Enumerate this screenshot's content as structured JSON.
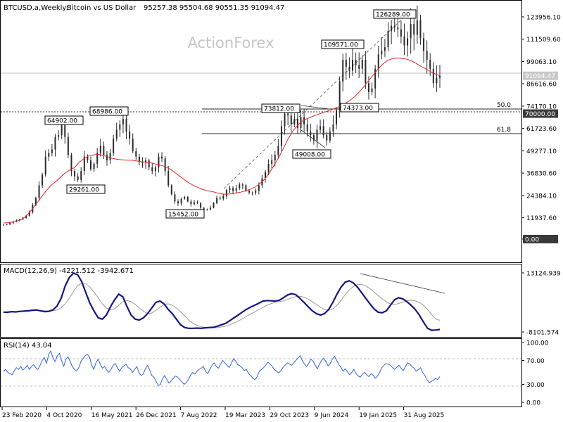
{
  "header": {
    "symbol": "BTCUSD.a,Weekly:",
    "description": "Bitcoin vs US Dollar",
    "ohlc": "95257.38 95504.68 90551.35 91094.47"
  },
  "watermark": "ActionForex",
  "colors": {
    "background": "#ffffff",
    "candles": "#2a2a2a",
    "ma": "#e32626",
    "macd_line": "#151580",
    "macd_signal": "#9a9a9a",
    "rsi": "#2f63e6",
    "level_fill": "#3a3a3a",
    "grid": "#bfbfbf"
  },
  "chart_data": [
    {
      "type": "line",
      "panel": "price",
      "title": "BTCUSD.a,Weekly: Bitcoin vs US Dollar",
      "x_ticks": [
        "23 Feb 2020",
        "4 Oct 2020",
        "16 May 2021",
        "26 Dec 2021",
        "7 Aug 2022",
        "19 Mar 2023",
        "29 Oct 2023",
        "9 Jun 2024",
        "19 Jan 2025",
        "31 Aug 2025"
      ],
      "y_ticks": [
        "123956.10",
        "111509.60",
        "99063.10",
        "86616.60",
        "74170.10",
        "61723.60",
        "49277.10",
        "36830.60",
        "24384.10",
        "11937.60",
        "0.00"
      ],
      "ylim": [
        0,
        131000
      ],
      "series": [
        {
          "name": "",
          "values": [
            8000,
            8200,
            9100,
            9800,
            10500,
            11000,
            11800,
            13000,
            15000,
            19000,
            23000,
            30000,
            36000,
            46000,
            48000,
            50000,
            57000,
            58000,
            63500,
            57000,
            47000,
            38000,
            35000,
            33000,
            38000,
            46000,
            44000,
            39000,
            42000,
            48000,
            52000,
            47000,
            44000,
            48000,
            56000,
            61000,
            64000,
            67000,
            60000,
            56000,
            49000,
            46000,
            43000,
            42500,
            44000,
            40000,
            38000,
            40000,
            46000,
            45000,
            38000,
            30000,
            25000,
            21000,
            20000,
            22500,
            23500,
            21000,
            19500,
            20500,
            20000,
            17500,
            16500,
            16500,
            17500,
            20000,
            23000,
            22500,
            24000,
            27500,
            28500,
            27000,
            28500,
            30500,
            30000,
            27000,
            26000,
            25800,
            27000,
            30000,
            34000,
            37500,
            42000,
            44000,
            47000,
            52000,
            63000,
            70000,
            69000,
            64000,
            67000,
            62000,
            68000,
            64000,
            60000,
            58000,
            55000,
            61000,
            63000,
            58000,
            55000,
            60000,
            64000,
            72000,
            88000,
            100000,
            96000,
            94000,
            100000,
            97000,
            95000,
            100000,
            87000,
            82000,
            84000,
            95000,
            103000,
            105000,
            107000,
            116000,
            119000,
            118000,
            117000,
            113000,
            108000,
            112000,
            120000,
            114000,
            122000,
            112000,
            105000,
            100000,
            95000,
            87000,
            90000,
            91094
          ]
        },
        {
          "name": "",
          "values": [
            9000,
            9200,
            9600,
            10200,
            11200,
            13500,
            16500,
            20000,
            23500,
            27000,
            30000,
            32000,
            34500,
            37000,
            38500,
            40000,
            43000,
            45000,
            46500,
            47000,
            47300,
            46800,
            45800,
            45000,
            44500,
            44200,
            44000,
            44000,
            43600,
            43200,
            43000,
            42600,
            41900,
            41300,
            40500,
            39200,
            37400,
            35400,
            33400,
            31500,
            30000,
            28800,
            27700,
            27000,
            26500,
            25800,
            25200,
            25000,
            25300,
            25700,
            26200,
            26900,
            27800,
            29000,
            30800,
            33300,
            36700,
            40900,
            45400,
            50500,
            55800,
            60200,
            63500,
            65800,
            67200,
            68300,
            69300,
            70200,
            71100,
            72000,
            73000,
            74200,
            75600,
            77300,
            79400,
            82000,
            85100,
            88400,
            91700,
            94900,
            97700,
            99700,
            100700,
            101000,
            100800,
            100400,
            99500,
            98000,
            96400,
            95000,
            93500,
            92100,
            91094
          ]
        }
      ],
      "levels": [
        {
          "value": 91094.47,
          "label": "91094.47"
        },
        {
          "value": 70000,
          "label": "70000.00"
        },
        {
          "value": 0,
          "label": "0.00"
        }
      ],
      "fib_labels": [
        {
          "label": "50.0",
          "value": 74170
        },
        {
          "label": "61.8",
          "value": 61723
        }
      ],
      "annotations": [
        {
          "label": "64902.00",
          "value": 64902
        },
        {
          "label": "68986.00",
          "value": 68986
        },
        {
          "label": "29261.00",
          "value": 29261
        },
        {
          "label": "15452.00",
          "value": 15452
        },
        {
          "label": "73812.00",
          "value": 73812
        },
        {
          "label": "49008.00",
          "value": 49008
        },
        {
          "label": "109571.00",
          "value": 109571
        },
        {
          "label": "74373.00",
          "value": 74373
        },
        {
          "label": "126289.00",
          "value": 126289
        }
      ]
    },
    {
      "type": "line",
      "panel": "macd",
      "title": "MACD(12,26,9) -4221.512 -3942.671",
      "y_ticks": [
        "13124.939",
        "-8101.574"
      ],
      "ylim": [
        -8101.574,
        13124.939
      ],
      "series": [
        {
          "name": "",
          "values": [
            -1000,
            -1000,
            -800,
            -900,
            -700,
            -600,
            -500,
            -300,
            -200,
            -500,
            -800,
            -700,
            -200,
            1200,
            4000,
            8500,
            11500,
            13000,
            12500,
            10000,
            6000,
            2200,
            -600,
            -3000,
            -3500,
            -2000,
            1000,
            3500,
            5500,
            4500,
            1000,
            -2000,
            -3500,
            -3800,
            -3000,
            -1500,
            500,
            2500,
            3000,
            2000,
            0,
            -1500,
            -3500,
            -5500,
            -6500,
            -6800,
            -6800,
            -6700,
            -6800,
            -6600,
            -6500,
            -6400,
            -6000,
            -5500,
            -5000,
            -4000,
            -3000,
            -2000,
            -1000,
            0,
            800,
            1500,
            2200,
            3000,
            3200,
            3100,
            3000,
            3300,
            4200,
            5200,
            5700,
            5300,
            4000,
            2500,
            1000,
            -500,
            -1500,
            -2000,
            -1500,
            0,
            2500,
            5500,
            8000,
            9800,
            10300,
            9500,
            8000,
            6000,
            4000,
            2000,
            200,
            -1000,
            -1200,
            -500,
            1500,
            3500,
            4200,
            3800,
            2800,
            1500,
            0,
            -2000,
            -4500,
            -6800,
            -7500,
            -7400,
            -7200
          ]
        },
        {
          "name": "",
          "values": [
            -900,
            -950,
            -900,
            -850,
            -800,
            -700,
            -600,
            -500,
            -400,
            -400,
            -500,
            -550,
            -500,
            -200,
            600,
            2000,
            4000,
            6500,
            8500,
            9500,
            9200,
            8000,
            6200,
            4200,
            2000,
            500,
            -200,
            200,
            1500,
            2800,
            3200,
            2800,
            1800,
            500,
            -600,
            -1500,
            -1300,
            -400,
            800,
            1800,
            2000,
            1500,
            500,
            -800,
            -2300,
            -3800,
            -5000,
            -5700,
            -6200,
            -6500,
            -6600,
            -6600,
            -6500,
            -6300,
            -6000,
            -5500,
            -4900,
            -4200,
            -3400,
            -2500,
            -1700,
            -900,
            -100,
            700,
            1500,
            2100,
            2500,
            2800,
            3100,
            3600,
            4200,
            4600,
            4700,
            4400,
            3700,
            2800,
            1800,
            800,
            0,
            -300,
            200,
            1500,
            3300,
            5300,
            7000,
            8300,
            8900,
            9000,
            8500,
            7500,
            6300,
            5000,
            3800,
            2700,
            2000,
            1800,
            2100,
            2700,
            3100,
            3300,
            3100,
            2500,
            1500,
            0,
            -1800,
            -3500,
            -3900
          ]
        }
      ]
    },
    {
      "type": "line",
      "panel": "rsi",
      "title": "RSI(14) 43.04",
      "y_ticks": [
        "100.00",
        "70.00",
        "30.00",
        "0.00"
      ],
      "ylim": [
        0,
        100
      ],
      "series": [
        {
          "name": "",
          "values": [
            52,
            55,
            50,
            48,
            46,
            53,
            58,
            55,
            60,
            54,
            57,
            62,
            55,
            60,
            63,
            58,
            55,
            62,
            70,
            75,
            65,
            80,
            86,
            75,
            68,
            78,
            82,
            70,
            60,
            72,
            76,
            68,
            60,
            55,
            52,
            58,
            68,
            73,
            78,
            80,
            76,
            62,
            55,
            66,
            72,
            64,
            57,
            60,
            54,
            50,
            55,
            62,
            65,
            58,
            52,
            58,
            61,
            64,
            58,
            56,
            50,
            55,
            60,
            50,
            45,
            47,
            56,
            62,
            54,
            45,
            42,
            35,
            28,
            30,
            40,
            45,
            38,
            32,
            36,
            40,
            44,
            42,
            38,
            34,
            30,
            33,
            38,
            45,
            50,
            47,
            52,
            55,
            57,
            60,
            52,
            48,
            55,
            62,
            66,
            60,
            57,
            64,
            70,
            66,
            62,
            58,
            65,
            73,
            69,
            63,
            61,
            58,
            53,
            55,
            48,
            45,
            40,
            38,
            43,
            52,
            55,
            58,
            62,
            67,
            64,
            60,
            55,
            52,
            49,
            53,
            58,
            62,
            66,
            64,
            62,
            66,
            70,
            74,
            78,
            70,
            64,
            60,
            65,
            72,
            69,
            62,
            56,
            64,
            70,
            74,
            68,
            61,
            65,
            72,
            77,
            70,
            63,
            58,
            52,
            56,
            51,
            46,
            50,
            55,
            48,
            44,
            42,
            47,
            50,
            46,
            43,
            48,
            45,
            40,
            44,
            50,
            58,
            62,
            65,
            64,
            62,
            58,
            55,
            59,
            62,
            57,
            53,
            60,
            66,
            64,
            60,
            57,
            52,
            55,
            58,
            50,
            45,
            38,
            33,
            35,
            37,
            40,
            38,
            43.04
          ]
        }
      ]
    }
  ]
}
